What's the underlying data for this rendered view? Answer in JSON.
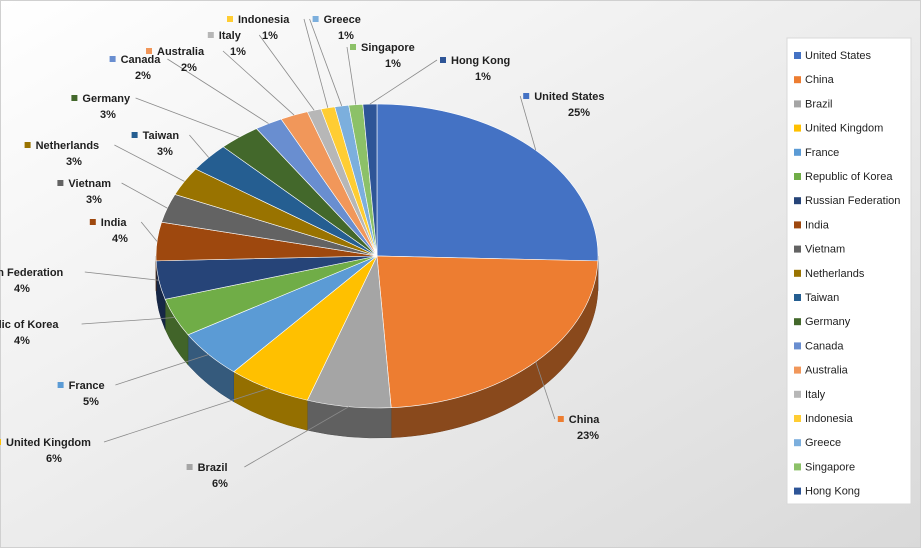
{
  "chart_data": {
    "type": "pie",
    "style": "3d",
    "legend_position": "right",
    "slices": [
      {
        "label": "United States",
        "value": 25,
        "display": "25%",
        "color": "#4472C4"
      },
      {
        "label": "China",
        "value": 23,
        "display": "23%",
        "color": "#ED7D31"
      },
      {
        "label": "Brazil",
        "value": 6,
        "display": "6%",
        "color": "#A5A5A5"
      },
      {
        "label": "United Kingdom",
        "value": 6,
        "display": "6%",
        "color": "#FFC000"
      },
      {
        "label": "France",
        "value": 5,
        "display": "5%",
        "color": "#5B9BD5"
      },
      {
        "label": "Republic of Korea",
        "value": 4,
        "display": "4%",
        "color": "#70AD47"
      },
      {
        "label": "Russian Federation",
        "value": 4,
        "display": "4%",
        "color": "#264478"
      },
      {
        "label": "India",
        "value": 4,
        "display": "4%",
        "color": "#9E480E"
      },
      {
        "label": "Vietnam",
        "value": 3,
        "display": "3%",
        "color": "#636363"
      },
      {
        "label": "Netherlands",
        "value": 3,
        "display": "3%",
        "color": "#997300"
      },
      {
        "label": "Taiwan",
        "value": 3,
        "display": "3%",
        "color": "#255E91"
      },
      {
        "label": "Germany",
        "value": 3,
        "display": "3%",
        "color": "#43682B"
      },
      {
        "label": "Canada",
        "value": 2,
        "display": "2%",
        "color": "#698ED0"
      },
      {
        "label": "Australia",
        "value": 2,
        "display": "2%",
        "color": "#F1975A"
      },
      {
        "label": "Italy",
        "value": 1,
        "display": "1%",
        "color": "#B7B7B7"
      },
      {
        "label": "Indonesia",
        "value": 1,
        "display": "1%",
        "color": "#FFCD33"
      },
      {
        "label": "Greece",
        "value": 1,
        "display": "1%",
        "color": "#7CAFDD"
      },
      {
        "label": "Singapore",
        "value": 1,
        "display": "1%",
        "color": "#8CC168"
      },
      {
        "label": "Hong Kong",
        "value": 1,
        "display": "1%",
        "color": "#2E5597"
      }
    ]
  }
}
